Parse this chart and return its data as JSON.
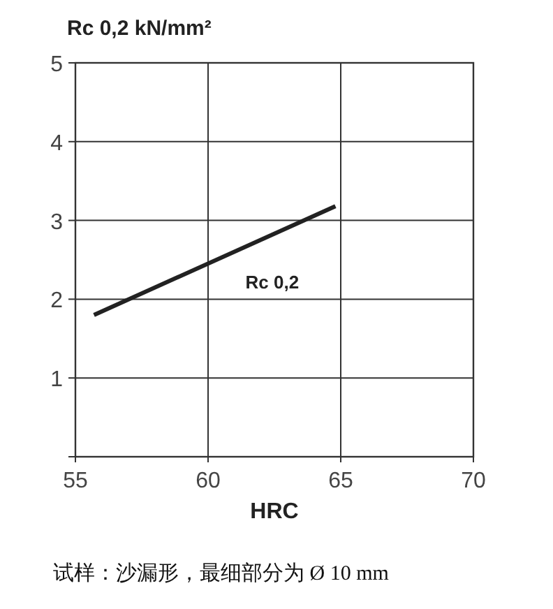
{
  "chart_data": {
    "type": "line",
    "ylabel": "Rc 0,2 kN/mm²",
    "xlabel": "HRC",
    "series": [
      {
        "name": "Rc 0,2",
        "color": "#222222",
        "x": [
          55.7,
          64.8
        ],
        "values": [
          1.8,
          3.18
        ]
      }
    ],
    "xlim": [
      55,
      70
    ],
    "xticks": [
      55,
      60,
      65,
      70
    ],
    "ylim": [
      0,
      5
    ],
    "yticks": [
      {
        "value": 0,
        "label": null
      },
      1,
      2,
      3,
      4,
      5
    ],
    "grid": true,
    "line_style": "solid",
    "annotations": [
      "试样：沙漏形，最细部分为 Ø 10 mm"
    ]
  }
}
